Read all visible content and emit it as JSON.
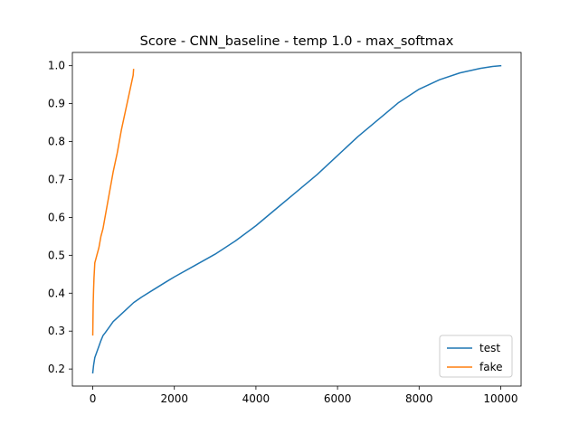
{
  "chart_data": {
    "type": "line",
    "title": "Score - CNN_baseline - temp 1.0 - max_softmax",
    "xlabel": "",
    "ylabel": "",
    "xlim": [
      -500,
      10500
    ],
    "ylim": [
      0.155,
      1.035
    ],
    "xticks": [
      0,
      2000,
      4000,
      6000,
      8000,
      10000
    ],
    "yticks": [
      0.2,
      0.3,
      0.4,
      0.5,
      0.6,
      0.7,
      0.8,
      0.9,
      1.0
    ],
    "ytick_labels": [
      "0.2",
      "0.3",
      "0.4",
      "0.5",
      "0.6",
      "0.7",
      "0.8",
      "0.9",
      "1.0"
    ],
    "grid": false,
    "legend_position": "lower-right",
    "series": [
      {
        "name": "test",
        "color": "#1f77b4",
        "x": [
          0,
          20,
          50,
          100,
          150,
          200,
          250,
          300,
          400,
          500,
          600,
          800,
          1000,
          1200,
          1500,
          1800,
          2000,
          2500,
          3000,
          3500,
          4000,
          4500,
          5000,
          5500,
          6000,
          6500,
          7000,
          7500,
          8000,
          8500,
          9000,
          9500,
          9800,
          10000
        ],
        "y": [
          0.19,
          0.21,
          0.23,
          0.245,
          0.26,
          0.275,
          0.288,
          0.295,
          0.31,
          0.325,
          0.335,
          0.355,
          0.375,
          0.39,
          0.41,
          0.43,
          0.443,
          0.473,
          0.503,
          0.538,
          0.578,
          0.623,
          0.668,
          0.713,
          0.763,
          0.813,
          0.858,
          0.903,
          0.938,
          0.963,
          0.981,
          0.993,
          0.998,
          1.0
        ]
      },
      {
        "name": "fake",
        "color": "#ff7f0e",
        "x": [
          0,
          5,
          10,
          20,
          30,
          50,
          75,
          100,
          150,
          200,
          250,
          300,
          400,
          500,
          600,
          700,
          800,
          900,
          950,
          990,
          1000
        ],
        "y": [
          0.29,
          0.33,
          0.37,
          0.41,
          0.44,
          0.48,
          0.49,
          0.5,
          0.52,
          0.55,
          0.57,
          0.6,
          0.66,
          0.72,
          0.77,
          0.83,
          0.88,
          0.93,
          0.955,
          0.975,
          0.99
        ]
      }
    ]
  }
}
